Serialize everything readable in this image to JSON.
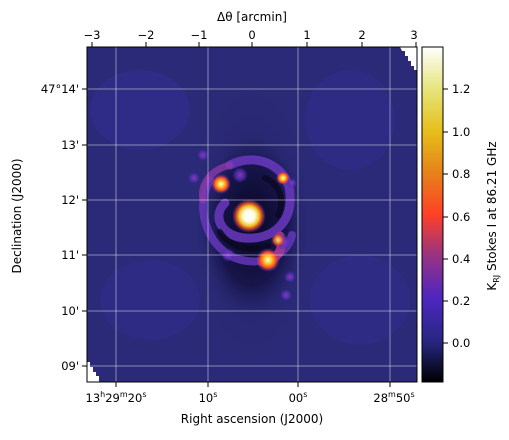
{
  "top_axis": {
    "label": "Δθ [arcmin]",
    "ticks": [
      "−3",
      "−2",
      "−1",
      "0",
      "1",
      "2",
      "3"
    ]
  },
  "bottom_axis": {
    "label": "Right ascension (J2000)",
    "ticks": [
      "13h29m20s",
      "10s",
      "00s",
      "28m50s"
    ]
  },
  "left_axis": {
    "label": "Declination (J2000)",
    "ticks": [
      "47°14'",
      "13'",
      "12'",
      "11'",
      "10'",
      "09'"
    ]
  },
  "colorbar": {
    "label_prefix": "K",
    "label_sub": "RJ",
    "label_suffix": " Stokes I at 86.21 GHz",
    "ticks": [
      "1.2",
      "1.0",
      "0.8",
      "0.6",
      "0.4",
      "0.2",
      "0.0"
    ],
    "min": -0.18,
    "max": 1.4,
    "colormap": "CMRmap",
    "colors": [
      "#000000",
      "#262680",
      "#4d26bf",
      "#993380",
      "#ff4026",
      "#e6801a",
      "#e6bf1a",
      "#e6e680",
      "#ffffff"
    ]
  },
  "map": {
    "background_color": "#2b2a78",
    "grid": true
  }
}
